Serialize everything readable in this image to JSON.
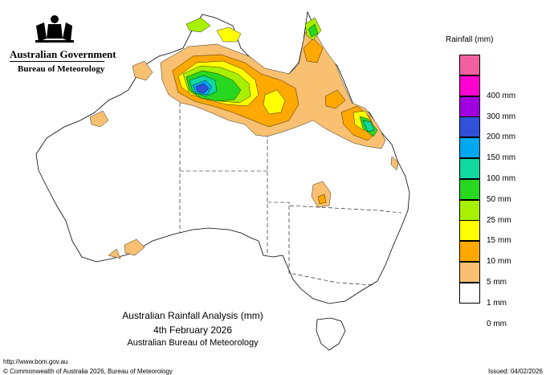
{
  "header": {
    "government": "Australian Government",
    "agency": "Bureau of Meteorology"
  },
  "legend": {
    "title": "Rainfall (mm)",
    "items": [
      {
        "label": "",
        "color": "#f060a0"
      },
      {
        "label": "400 mm",
        "color": "#ff00d0"
      },
      {
        "label": "300 mm",
        "color": "#a000e0"
      },
      {
        "label": "200 mm",
        "color": "#3050d8"
      },
      {
        "label": "150 mm",
        "color": "#00a8f0"
      },
      {
        "label": "100 mm",
        "color": "#10d8a0"
      },
      {
        "label": "50 mm",
        "color": "#28d820"
      },
      {
        "label": "25 mm",
        "color": "#a8f000"
      },
      {
        "label": "15 mm",
        "color": "#ffff00"
      },
      {
        "label": "10 mm",
        "color": "#ffa800"
      },
      {
        "label": "5 mm",
        "color": "#f8c070"
      },
      {
        "label": "1 mm",
        "color": "#ffffff"
      },
      {
        "label": "0 mm",
        "color": null
      }
    ]
  },
  "map": {
    "title": "Australian Rainfall Analysis (mm)",
    "date": "4th February 2026",
    "source": "Australian Bureau of Meteorology"
  },
  "footer": {
    "url": "http://www.bom.gov.au",
    "copyright": "© Commonwealth of Australia 2026, Bureau of Meteorology",
    "issued": "Issued: 04/02/2026"
  }
}
